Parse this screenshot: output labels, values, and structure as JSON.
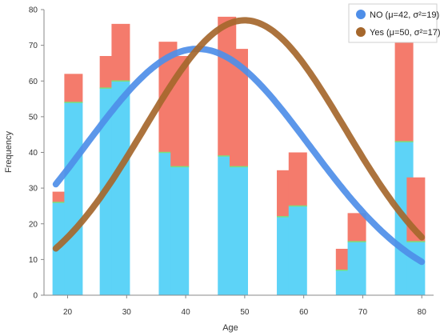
{
  "chart_data": {
    "type": "bar",
    "xlabel": "Age",
    "ylabel": "Frequency",
    "xlim": [
      16,
      82
    ],
    "ylim": [
      0,
      80
    ],
    "x_ticks": [
      20,
      30,
      40,
      50,
      60,
      70,
      80
    ],
    "y_ticks": [
      0,
      10,
      20,
      30,
      40,
      50,
      60,
      70,
      80
    ],
    "stacked": true,
    "bars": [
      {
        "x": 19,
        "no": 26,
        "yes": 3
      },
      {
        "x": 21,
        "no": 54,
        "yes": 8
      },
      {
        "x": 27,
        "no": 58,
        "yes": 9
      },
      {
        "x": 29,
        "no": 60,
        "yes": 16
      },
      {
        "x": 37,
        "no": 40,
        "yes": 31
      },
      {
        "x": 39,
        "no": 36,
        "yes": 31
      },
      {
        "x": 47,
        "no": 39,
        "yes": 39
      },
      {
        "x": 49,
        "no": 36,
        "yes": 33
      },
      {
        "x": 57,
        "no": 22,
        "yes": 13
      },
      {
        "x": 59,
        "no": 25,
        "yes": 15
      },
      {
        "x": 67,
        "no": 7,
        "yes": 6
      },
      {
        "x": 69,
        "no": 15,
        "yes": 8
      },
      {
        "x": 77,
        "no": 43,
        "yes": 29
      },
      {
        "x": 79,
        "no": 15,
        "yes": 18
      }
    ],
    "series": [
      {
        "name": "NO (μ=42, σ²=19)",
        "color": "#4e8ee8",
        "bar_color": "#5dd3f7",
        "mu": 42,
        "sd": 19,
        "peak": 69
      },
      {
        "name": "Yes (μ=50, σ²=17)",
        "color": "#a5672c",
        "bar_color": "#f47b6c",
        "mu": 50,
        "sd": 17,
        "peak": 77
      }
    ],
    "grid": false,
    "legend_position": "top-right"
  }
}
